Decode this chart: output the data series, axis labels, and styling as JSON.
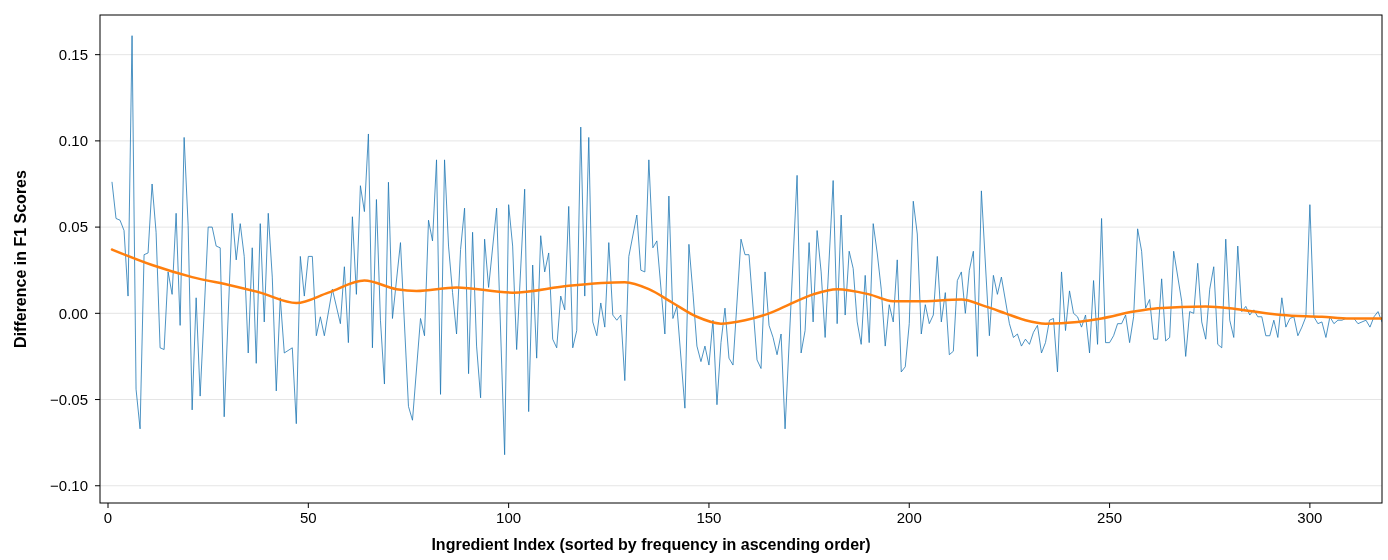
{
  "chart_data": {
    "type": "line",
    "xlabel": "Ingredient Index (sorted by frequency in ascending order)",
    "ylabel": "Difference in F1 Scores",
    "xlim": [
      -2,
      318
    ],
    "ylim": [
      -0.11,
      0.173
    ],
    "xticks": [
      0,
      50,
      100,
      150,
      200,
      250,
      300
    ],
    "yticks": [
      {
        "value": -0.1,
        "label": "−0.10"
      },
      {
        "value": -0.05,
        "label": "−0.05"
      },
      {
        "value": 0,
        "label": "0.00"
      },
      {
        "value": 0.05,
        "label": "0.05"
      },
      {
        "value": 0.1,
        "label": "0.10"
      },
      {
        "value": 0.15,
        "label": "0.15"
      }
    ],
    "grid": "y",
    "marker": "none",
    "series": [
      {
        "color": "#1f77b4",
        "x": [
          1,
          2,
          3,
          4,
          5,
          6,
          7,
          8,
          9,
          10,
          11,
          12,
          13,
          14,
          15,
          16,
          17,
          18,
          19,
          20,
          21,
          22,
          23,
          25,
          26,
          27,
          28,
          29,
          31,
          32,
          33,
          34,
          35,
          36,
          37,
          38,
          39,
          40,
          41,
          42,
          43,
          44,
          46,
          47,
          48,
          49,
          50,
          51,
          52,
          53,
          54,
          56,
          58,
          59,
          60,
          61,
          62,
          63,
          64,
          65,
          66,
          67,
          68,
          69,
          70,
          71,
          73,
          75,
          76,
          78,
          79,
          80,
          81,
          82,
          83,
          84,
          85,
          86,
          87,
          88,
          89,
          90,
          91,
          92,
          93,
          94,
          95,
          97,
          99,
          100,
          101,
          102,
          104,
          105,
          106,
          107,
          108,
          109,
          110,
          111,
          112,
          113,
          114,
          115,
          116,
          117,
          118,
          119,
          120,
          121,
          122,
          123,
          124,
          125,
          126,
          127,
          128,
          129,
          130,
          132,
          133,
          134,
          135,
          136,
          137,
          139,
          140,
          141,
          142,
          144,
          145,
          146,
          147,
          148,
          149,
          150,
          151,
          152,
          153,
          154,
          155,
          156,
          158,
          159,
          160,
          162,
          163,
          164,
          165,
          166,
          167,
          168,
          169,
          172,
          173,
          174,
          175,
          176,
          177,
          178,
          179,
          181,
          182,
          183,
          184,
          185,
          186,
          187,
          188,
          189,
          190,
          191,
          192,
          193,
          194,
          195,
          196,
          197,
          198,
          199,
          200,
          201,
          202,
          203,
          204,
          205,
          206,
          207,
          208,
          209,
          210,
          211,
          212,
          213,
          214,
          215,
          216,
          217,
          218,
          220,
          221,
          222,
          223,
          225,
          226,
          227,
          228,
          229,
          230,
          231,
          232,
          233,
          234,
          235,
          236,
          237,
          238,
          239,
          240,
          241,
          242,
          243,
          244,
          245,
          246,
          247,
          248,
          249,
          250,
          251,
          252,
          253,
          254,
          255,
          256,
          257,
          258,
          259,
          260,
          261,
          262,
          263,
          264,
          265,
          266,
          268,
          269,
          270,
          271,
          272,
          273,
          274,
          275,
          276,
          277,
          278,
          279,
          280,
          281,
          282,
          283,
          284,
          285,
          286,
          287,
          288,
          289,
          290,
          291,
          292,
          293,
          294,
          295,
          296,
          297,
          298,
          299,
          300,
          301,
          302,
          303,
          304,
          305,
          306,
          307,
          308,
          309,
          311,
          312,
          313,
          314,
          315,
          316,
          317,
          318
        ],
        "values": [
          0.076,
          0.055,
          0.054,
          0.048,
          0.01,
          0.161,
          -0.044,
          -0.067,
          0.034,
          0.035,
          0.075,
          0.047,
          -0.02,
          -0.021,
          0.024,
          0.011,
          0.058,
          -0.007,
          0.102,
          0.051,
          -0.056,
          0.009,
          -0.048,
          0.05,
          0.05,
          0.039,
          0.038,
          -0.06,
          0.058,
          0.031,
          0.052,
          0.033,
          -0.023,
          0.038,
          -0.029,
          0.052,
          -0.005,
          0.058,
          0.021,
          -0.045,
          0.009,
          -0.023,
          -0.02,
          -0.064,
          0.033,
          0.01,
          0.033,
          0.033,
          -0.013,
          -0.002,
          -0.013,
          0.014,
          -0.006,
          0.027,
          -0.017,
          0.056,
          0.011,
          0.074,
          0.059,
          0.104,
          -0.02,
          0.066,
          -0.004,
          -0.041,
          0.076,
          -0.003,
          0.041,
          -0.054,
          -0.062,
          -0.003,
          -0.013,
          0.054,
          0.042,
          0.089,
          -0.047,
          0.089,
          0.039,
          0.012,
          -0.012,
          0.037,
          0.061,
          -0.035,
          0.047,
          -0.019,
          -0.049,
          0.043,
          0.015,
          0.061,
          -0.082,
          0.063,
          0.039,
          -0.021,
          0.072,
          -0.057,
          0.028,
          -0.026,
          0.045,
          0.024,
          0.035,
          -0.015,
          -0.02,
          0.01,
          0.002,
          0.062,
          -0.02,
          -0.01,
          0.108,
          0.01,
          0.102,
          -0.005,
          -0.013,
          0.006,
          -0.008,
          0.041,
          -0.001,
          -0.004,
          -0.001,
          -0.039,
          0.033,
          0.057,
          0.025,
          0.024,
          0.089,
          0.038,
          0.042,
          -0.012,
          0.068,
          -0.003,
          0.004,
          -0.055,
          0.04,
          0.012,
          -0.019,
          -0.028,
          -0.019,
          -0.03,
          -0.004,
          -0.053,
          -0.017,
          0.003,
          -0.026,
          -0.03,
          0.043,
          0.034,
          0.034,
          -0.027,
          -0.032,
          0.024,
          -0.007,
          -0.014,
          -0.024,
          -0.012,
          -0.067,
          0.08,
          -0.023,
          -0.01,
          0.041,
          -0.005,
          0.048,
          0.024,
          -0.014,
          0.077,
          -0.006,
          0.057,
          -0.001,
          0.036,
          0.026,
          -0.005,
          -0.018,
          0.022,
          -0.017,
          0.052,
          0.035,
          0.014,
          -0.019,
          0.005,
          -0.005,
          0.031,
          -0.034,
          -0.031,
          -0.006,
          0.065,
          0.046,
          -0.012,
          0.005,
          -0.006,
          -0.001,
          0.033,
          -0.005,
          0.012,
          -0.024,
          -0.022,
          0.019,
          0.024,
          0.0,
          0.025,
          0.036,
          -0.025,
          0.071,
          -0.013,
          0.022,
          0.011,
          0.021,
          -0.006,
          -0.014,
          -0.012,
          -0.019,
          -0.015,
          -0.018,
          -0.011,
          -0.007,
          -0.023,
          -0.017,
          -0.004,
          -0.003,
          -0.034,
          0.024,
          -0.01,
          0.013,
          0.0,
          -0.002,
          -0.008,
          -0.001,
          -0.023,
          0.019,
          -0.018,
          0.055,
          -0.017,
          -0.017,
          -0.013,
          -0.006,
          -0.006,
          -0.001,
          -0.017,
          -0.002,
          0.049,
          0.036,
          0.003,
          0.008,
          -0.015,
          -0.015,
          0.02,
          -0.016,
          -0.014,
          0.036,
          0.007,
          -0.025,
          0.001,
          0.0,
          0.029,
          -0.005,
          -0.015,
          0.014,
          0.027,
          -0.018,
          -0.02,
          0.043,
          -0.004,
          -0.014,
          0.039,
          0.001,
          0.004,
          -0.001,
          0.002,
          -0.002,
          -0.002,
          -0.013,
          -0.013,
          -0.004,
          -0.014,
          0.009,
          -0.008,
          -0.003,
          -0.002,
          -0.013,
          -0.008,
          -0.002,
          0.063,
          -0.002,
          -0.006,
          -0.005,
          -0.014,
          -0.002,
          -0.006,
          -0.004,
          -0.004,
          -0.003,
          -0.003,
          -0.006,
          -0.005,
          -0.004,
          -0.008,
          -0.002,
          0.001,
          -0.005
        ]
      },
      {
        "color": "#ff7f0e",
        "x": [
          1,
          11,
          21,
          31,
          38,
          47,
          55,
          64,
          72,
          77,
          87,
          101,
          115,
          129,
          135,
          141,
          147,
          153,
          159,
          165,
          169,
          176,
          182,
          190,
          196,
          202,
          213,
          219,
          224,
          229,
          234,
          242,
          248,
          256,
          262,
          274,
          280,
          286,
          293,
          303,
          310,
          318
        ],
        "values": [
          0.037,
          0.028,
          0.021,
          0.016,
          0.012,
          0.006,
          0.012,
          0.019,
          0.014,
          0.013,
          0.015,
          0.012,
          0.016,
          0.018,
          0.014,
          0.006,
          -0.002,
          -0.006,
          -0.004,
          0.0,
          0.004,
          0.011,
          0.014,
          0.011,
          0.007,
          0.007,
          0.008,
          0.004,
          0.0,
          -0.004,
          -0.006,
          -0.005,
          -0.003,
          0.001,
          0.003,
          0.004,
          0.003,
          0.001,
          -0.001,
          -0.002,
          -0.003,
          -0.003
        ]
      }
    ]
  }
}
